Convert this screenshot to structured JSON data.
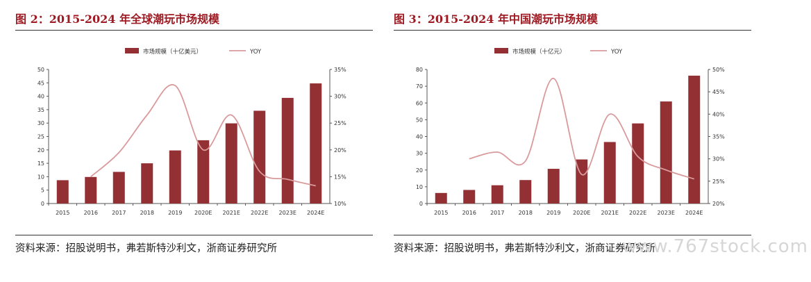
{
  "charts": [
    {
      "figure_title": "图 2：2015-2024 年全球潮玩市场规模",
      "source": "资料来源：招股说明书，弗若斯特沙利文，浙商证券研究所"
    },
    {
      "figure_title": "图 3：2015-2024 年中国潮玩市场规模",
      "source": "资料来源：招股说明书，弗若斯特沙利文，浙商证券研究所"
    }
  ],
  "colors": {
    "bar": "#933034",
    "line": "#d99a9c",
    "title": "#9e1b23"
  },
  "watermark": "www.767stock.com",
  "chart_data": [
    {
      "type": "bar",
      "categories": [
        "2015",
        "2016",
        "2017",
        "2018",
        "2019",
        "2020E",
        "2021E",
        "2022E",
        "2023E",
        "2024E"
      ],
      "series": [
        {
          "name": "市场规模（十亿美元）",
          "type": "bar",
          "axis": "left",
          "values": [
            8.7,
            9.9,
            11.8,
            15.0,
            19.8,
            23.6,
            29.9,
            34.6,
            39.4,
            44.8
          ]
        },
        {
          "name": "YOY",
          "type": "line",
          "axis": "right",
          "values": [
            null,
            15.0,
            19.5,
            26.5,
            32.0,
            20.0,
            26.5,
            16.0,
            14.5,
            13.3
          ]
        }
      ],
      "y_left": {
        "min": 0,
        "max": 50,
        "step": 5,
        "ticks": [
          "0",
          "5",
          "10",
          "15",
          "20",
          "25",
          "30",
          "35",
          "40",
          "45",
          "50"
        ]
      },
      "y_right": {
        "min": 10,
        "max": 35,
        "step": 5,
        "ticks": [
          "10%",
          "15%",
          "20%",
          "25%",
          "30%",
          "35%"
        ]
      },
      "legend": "top-center",
      "grid": false
    },
    {
      "type": "bar",
      "categories": [
        "2015",
        "2016",
        "2017",
        "2018",
        "2019",
        "2020E",
        "2021E",
        "2022E",
        "2023E",
        "2024E"
      ],
      "series": [
        {
          "name": "市场规模（十亿元）",
          "type": "bar",
          "axis": "left",
          "values": [
            6.3,
            8.1,
            10.9,
            14.0,
            20.7,
            26.3,
            36.7,
            47.8,
            60.9,
            76.3
          ]
        },
        {
          "name": "YOY",
          "type": "line",
          "axis": "right",
          "values": [
            null,
            30.0,
            31.5,
            29.5,
            48.0,
            26.5,
            40.0,
            30.5,
            27.5,
            25.5
          ]
        }
      ],
      "y_left": {
        "min": 0,
        "max": 80,
        "step": 10,
        "ticks": [
          "0",
          "10",
          "20",
          "30",
          "40",
          "50",
          "60",
          "70",
          "80"
        ]
      },
      "y_right": {
        "min": 20,
        "max": 50,
        "step": 5,
        "ticks": [
          "20%",
          "25%",
          "30%",
          "35%",
          "40%",
          "45%",
          "50%"
        ]
      },
      "legend": "top-center",
      "grid": false
    }
  ]
}
